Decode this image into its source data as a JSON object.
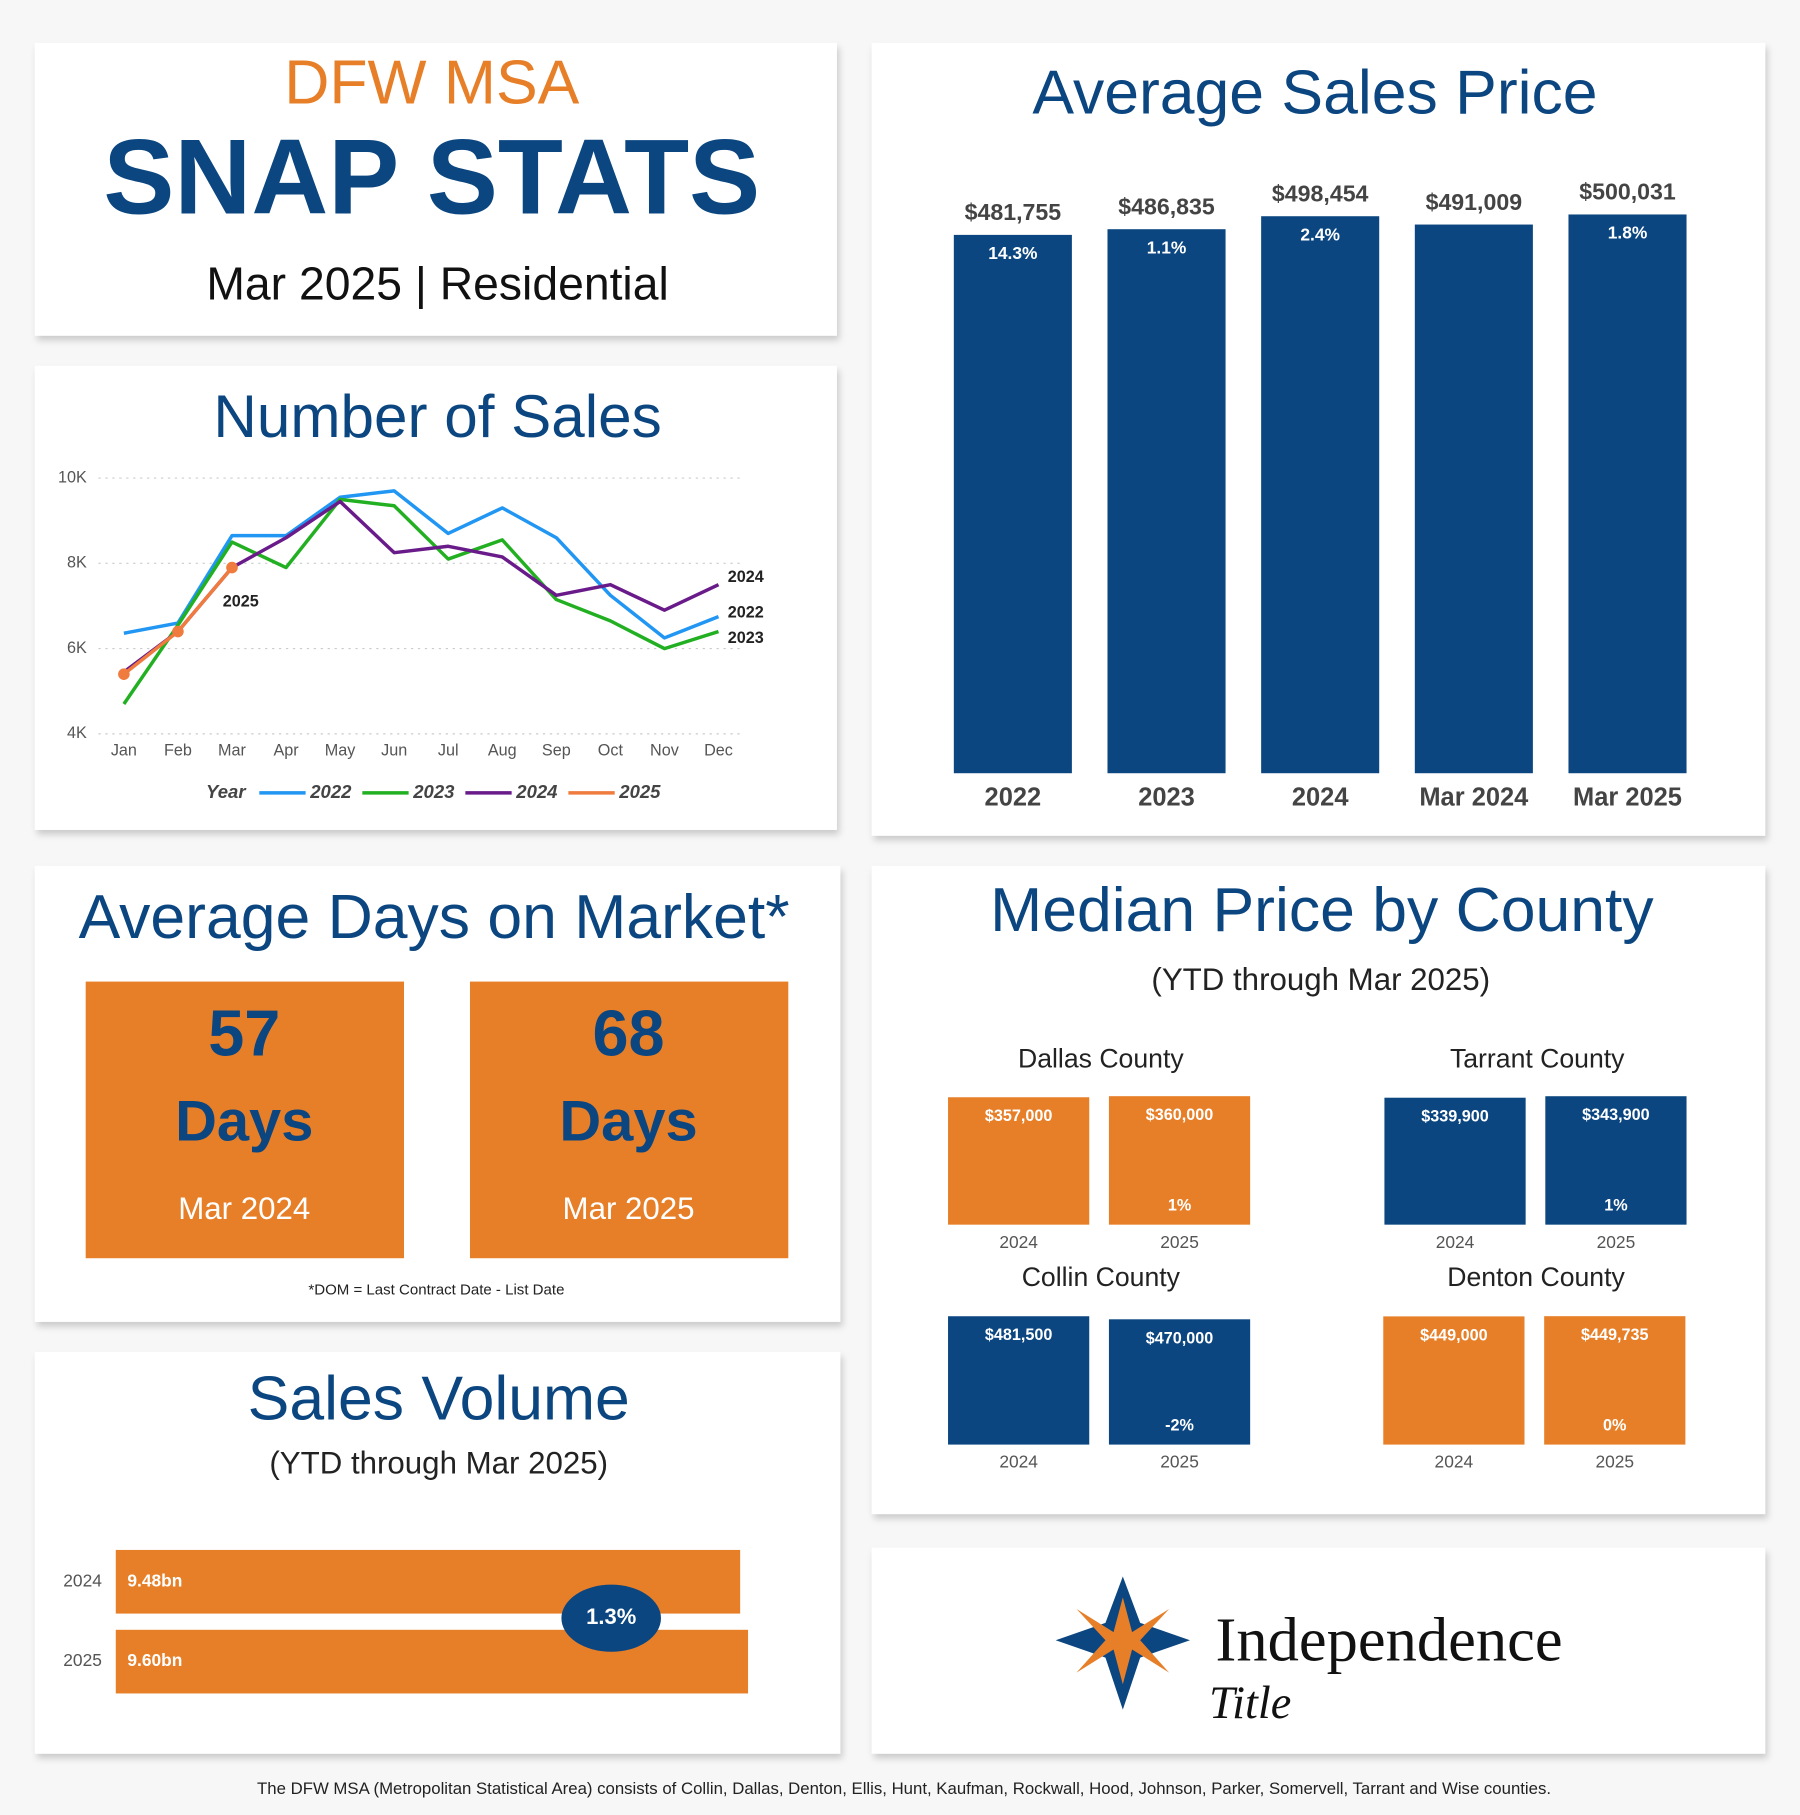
{
  "header": {
    "kicker": "DFW MSA",
    "title": "SNAP STATS",
    "period": "Mar 2025 | Residential"
  },
  "chart_data": [
    {
      "type": "line",
      "title": "Number of Sales",
      "categories": [
        "Jan",
        "Feb",
        "Mar",
        "Apr",
        "May",
        "Jun",
        "Jul",
        "Aug",
        "Sep",
        "Oct",
        "Nov",
        "Dec"
      ],
      "series": [
        {
          "name": "2022",
          "color": "#2196f3",
          "values": [
            6360,
            6600,
            8650,
            8650,
            9550,
            9700,
            8700,
            9300,
            8600,
            7250,
            6250,
            6750
          ]
        },
        {
          "name": "2023",
          "color": "#22b022",
          "values": [
            4700,
            6550,
            8500,
            7900,
            9500,
            9350,
            8100,
            8550,
            7150,
            6650,
            6000,
            6400
          ]
        },
        {
          "name": "2024",
          "color": "#6a1b8a",
          "values": [
            5450,
            6400,
            7900,
            8600,
            9450,
            8250,
            8400,
            8150,
            7250,
            7500,
            6900,
            7500
          ]
        },
        {
          "name": "2025",
          "color": "#f07b3f",
          "values": [
            5400,
            6400,
            7900,
            null,
            null,
            null,
            null,
            null,
            null,
            null,
            null,
            null
          ]
        }
      ],
      "ylim": [
        4000,
        10000
      ],
      "yticks": [
        {
          "value": 4000,
          "label": "4K"
        },
        {
          "value": 6000,
          "label": "6K"
        },
        {
          "value": 8000,
          "label": "8K"
        },
        {
          "value": 10000,
          "label": "10K"
        }
      ],
      "grid": true,
      "legend": "bottom",
      "legend_title": "Year"
    },
    {
      "type": "bar",
      "title": "Average Sales Price",
      "categories": [
        "2022",
        "2023",
        "2024",
        "Mar 2024",
        "Mar 2025"
      ],
      "values": [
        481755,
        486835,
        498454,
        491009,
        500031
      ],
      "value_labels": [
        "$481,755",
        "$486,835",
        "$498,454",
        "$491,009",
        "$500,031"
      ],
      "change_labels": [
        "14.3%",
        "1.1%",
        "2.4%",
        null,
        "1.8%"
      ],
      "color": "#0b4680",
      "ylim": [
        0,
        520000
      ]
    },
    {
      "type": "bar",
      "title": "Dallas County",
      "categories": [
        "2024",
        "2025"
      ],
      "values": [
        357000,
        360000
      ],
      "value_labels": [
        "$357,000",
        "$360,000"
      ],
      "change_labels": [
        null,
        "1%"
      ],
      "color": "#e77f28",
      "ylim": [
        0,
        360000
      ]
    },
    {
      "type": "bar",
      "title": "Tarrant County",
      "categories": [
        "2024",
        "2025"
      ],
      "values": [
        339900,
        343900
      ],
      "value_labels": [
        "$339,900",
        "$343,900"
      ],
      "change_labels": [
        null,
        "1%"
      ],
      "color": "#0b4680",
      "ylim": [
        0,
        344000
      ]
    },
    {
      "type": "bar",
      "title": "Collin County",
      "categories": [
        "2024",
        "2025"
      ],
      "values": [
        481500,
        470000
      ],
      "value_labels": [
        "$481,500",
        "$470,000"
      ],
      "change_labels": [
        null,
        "-2%"
      ],
      "color": "#0b4680",
      "ylim": [
        0,
        482000
      ]
    },
    {
      "type": "bar",
      "title": "Denton County",
      "categories": [
        "2024",
        "2025"
      ],
      "values": [
        449000,
        449735
      ],
      "value_labels": [
        "$449,000",
        "$449,735"
      ],
      "change_labels": [
        null,
        "0%"
      ],
      "color": "#e77f28",
      "ylim": [
        0,
        450000
      ]
    },
    {
      "type": "hbar",
      "title": "Sales Volume",
      "subtitle": "(YTD through Mar 2025)",
      "categories": [
        "2024",
        "2025"
      ],
      "values": [
        9.48,
        9.6
      ],
      "value_labels": [
        "9.48bn",
        "9.60bn"
      ],
      "color": "#e77f28",
      "xlim": [
        0,
        10
      ],
      "annotation": "1.3%"
    }
  ],
  "median_section": {
    "title": "Median Price by County",
    "subtitle": "(YTD through Mar 2025)"
  },
  "days_on_market": {
    "title": "Average Days on Market*",
    "cards": [
      {
        "value": 57,
        "unit": "Days",
        "label": "Mar 2024"
      },
      {
        "value": 68,
        "unit": "Days",
        "label": "Mar 2025"
      }
    ],
    "note": "*DOM = Last Contract Date - List Date"
  },
  "logo": {
    "name": "Independence",
    "script": "Title"
  },
  "footer": "The DFW MSA (Metropolitan Statistical Area) consists of Collin, Dallas, Denton, Ellis, Hunt, Kaufman, Rockwall, Hood, Johnson, Parker, Somervell, Tarrant and Wise counties."
}
